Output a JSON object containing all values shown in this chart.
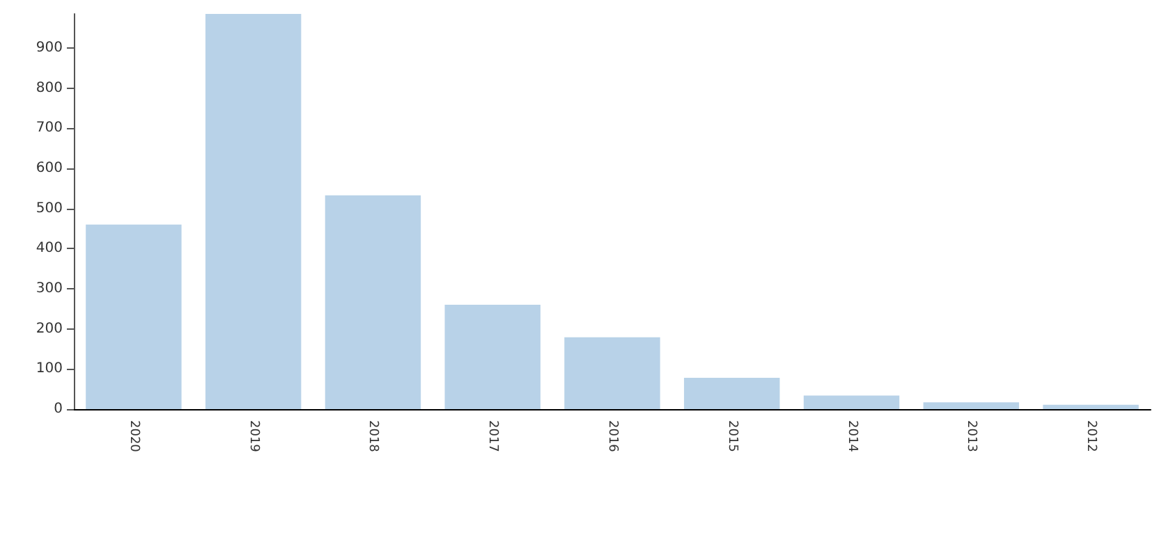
{
  "chart_data": {
    "type": "bar",
    "categories": [
      "2020",
      "2019",
      "2018",
      "2017",
      "2016",
      "2015",
      "2014",
      "2013",
      "2012"
    ],
    "values": [
      460,
      985,
      533,
      260,
      179,
      78,
      34,
      17,
      11
    ],
    "color": "#b8d2e8",
    "ylim": [
      0,
      985
    ],
    "yticks": [
      0,
      100,
      200,
      300,
      400,
      500,
      600,
      700,
      800,
      900
    ],
    "grid": false
  }
}
